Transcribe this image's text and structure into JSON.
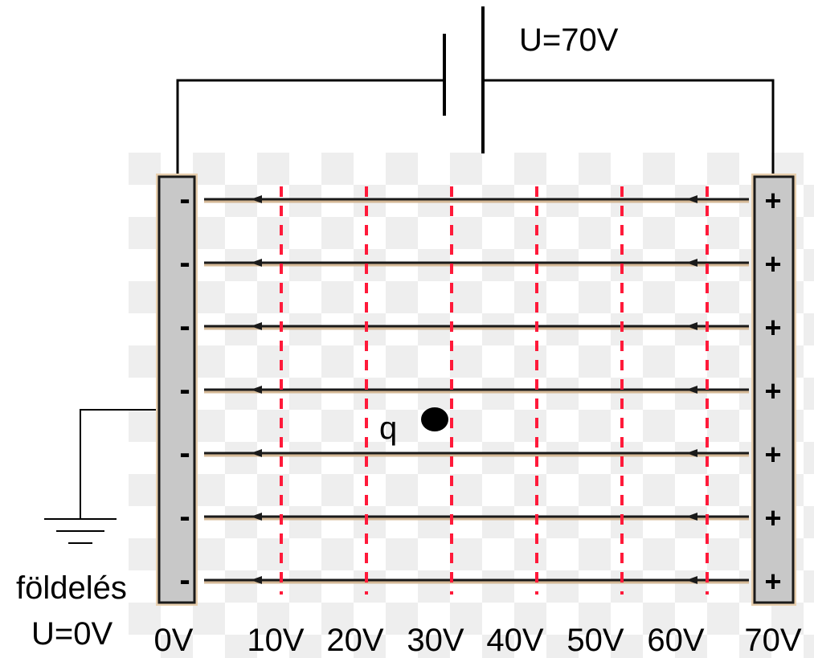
{
  "battery_label": "U=70V",
  "charge_label": "q",
  "ground_label": "földelés",
  "ground_voltage_label": "U=0V",
  "left_plate_sign": "-",
  "right_plate_sign": "+",
  "plate_sign_count": 7,
  "field_line_count": 7,
  "voltage_labels": [
    "0V",
    "10V",
    "20V",
    "30V",
    "40V",
    "50V",
    "60V",
    "70V"
  ],
  "colors": {
    "plate_fill": "#c8c8c8",
    "plate_outline": "#e8cfae",
    "field_line": "#1a1a1a",
    "field_line_shadow": "#d4b896",
    "equipotential": "#ff1a3a",
    "wire": "#000000",
    "checker": "#eeeeee"
  }
}
